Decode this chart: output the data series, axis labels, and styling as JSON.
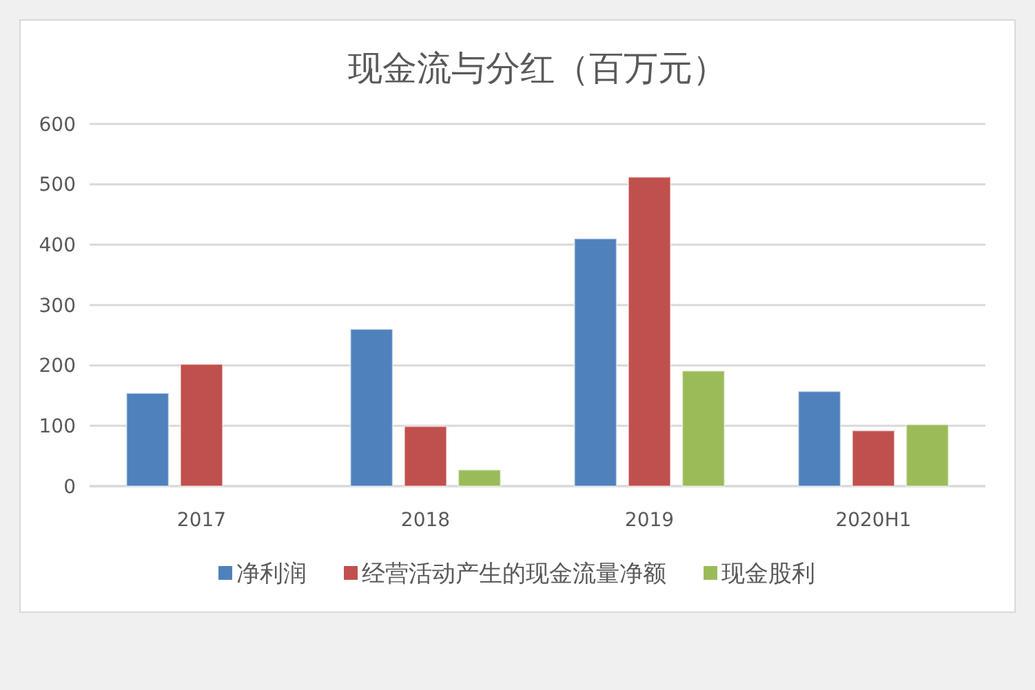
{
  "chart_data": {
    "type": "bar",
    "title": "现金流与分红（百万元）",
    "categories": [
      "2017",
      "2018",
      "2019",
      "2020H1"
    ],
    "series": [
      {
        "name": "净利润",
        "color": "#4f81bd",
        "values": [
          154,
          260,
          410,
          157
        ]
      },
      {
        "name": "经营活动产生的现金流量净额",
        "color": "#c0504d",
        "values": [
          202,
          99,
          512,
          92
        ]
      },
      {
        "name": "现金股利",
        "color": "#9bbb59",
        "values": [
          null,
          27,
          191,
          102
        ]
      }
    ],
    "ylim": [
      0,
      600
    ],
    "yticks": [
      0,
      100,
      200,
      300,
      400,
      500,
      600
    ],
    "grid": "y",
    "legend": "bottom"
  }
}
